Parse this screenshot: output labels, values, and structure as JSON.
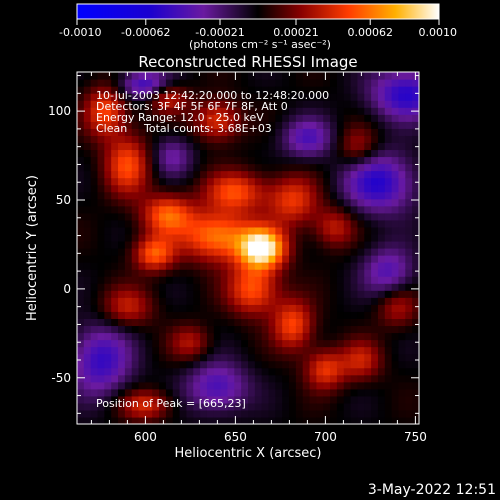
{
  "chart_data": {
    "type": "heatmap",
    "title": "Reconstructed RHESSI Image",
    "xlabel": "Heliocentric X (arcsec)",
    "ylabel": "Heliocentric Y (arcsec)",
    "xlim": [
      562,
      752
    ],
    "ylim": [
      -76,
      122
    ],
    "x_ticks": [
      600,
      650,
      700,
      750
    ],
    "y_ticks": [
      -50,
      0,
      50,
      100
    ],
    "colorbar": {
      "range": [
        -0.001,
        0.001
      ],
      "ticks": [
        "-0.0010",
        "-0.00062",
        "-0.00021",
        "0.00021",
        "0.00062",
        "0.0010"
      ],
      "tick_values": [
        -0.001,
        -0.00062,
        -0.00021,
        0.00021,
        0.00062,
        0.001
      ],
      "units": "(photons cm⁻² s⁻¹ asec⁻²)"
    },
    "annotations": [
      "10-Jul-2003 12:42:20.000 to 12:48:20.000",
      "Detectors: 3F 4F 5F 6F 7F 8F, Att 0",
      "Energy Range: 12.0 - 25.0 keV",
      "Clean",
      "Total counts: 3.68E+03"
    ],
    "peak_label": "Position of Peak = [665,23]",
    "peak": {
      "x": 665,
      "y": 23
    },
    "sources": [
      {
        "x": 665,
        "y": 23,
        "amp": 1.0,
        "sx": 9,
        "sy": 8
      },
      {
        "x": 640,
        "y": 30,
        "amp": 0.65,
        "sx": 14,
        "sy": 10
      },
      {
        "x": 612,
        "y": 42,
        "amp": 0.55,
        "sx": 10,
        "sy": 8
      },
      {
        "x": 590,
        "y": 70,
        "amp": 0.5,
        "sx": 9,
        "sy": 12
      },
      {
        "x": 578,
        "y": 100,
        "amp": 0.5,
        "sx": 8,
        "sy": 10
      },
      {
        "x": 605,
        "y": 20,
        "amp": 0.55,
        "sx": 8,
        "sy": 7
      },
      {
        "x": 650,
        "y": 55,
        "amp": 0.5,
        "sx": 12,
        "sy": 8
      },
      {
        "x": 682,
        "y": 50,
        "amp": 0.45,
        "sx": 10,
        "sy": 10
      },
      {
        "x": 705,
        "y": 35,
        "amp": 0.35,
        "sx": 8,
        "sy": 8
      },
      {
        "x": 640,
        "y": 95,
        "amp": 0.45,
        "sx": 9,
        "sy": 8
      },
      {
        "x": 612,
        "y": 108,
        "amp": 0.4,
        "sx": 8,
        "sy": 6
      },
      {
        "x": 660,
        "y": 0,
        "amp": 0.55,
        "sx": 10,
        "sy": 10
      },
      {
        "x": 682,
        "y": -20,
        "amp": 0.5,
        "sx": 8,
        "sy": 10
      },
      {
        "x": 700,
        "y": -45,
        "amp": 0.45,
        "sx": 8,
        "sy": 8
      },
      {
        "x": 590,
        "y": -10,
        "amp": 0.35,
        "sx": 10,
        "sy": 8
      },
      {
        "x": 720,
        "y": -40,
        "amp": 0.35,
        "sx": 8,
        "sy": 8
      },
      {
        "x": 740,
        "y": -10,
        "amp": 0.3,
        "sx": 8,
        "sy": 8
      },
      {
        "x": 625,
        "y": -30,
        "amp": 0.3,
        "sx": 8,
        "sy": 7
      },
      {
        "x": 600,
        "y": -65,
        "amp": 0.4,
        "sx": 10,
        "sy": 6
      },
      {
        "x": 718,
        "y": 80,
        "amp": 0.3,
        "sx": 8,
        "sy": 8
      },
      {
        "x": 745,
        "y": 110,
        "amp": -0.55,
        "sx": 14,
        "sy": 10
      },
      {
        "x": 600,
        "y": 115,
        "amp": -0.5,
        "sx": 10,
        "sy": 6
      },
      {
        "x": 730,
        "y": 60,
        "amp": -0.55,
        "sx": 14,
        "sy": 12
      },
      {
        "x": 575,
        "y": -40,
        "amp": -0.5,
        "sx": 12,
        "sy": 14
      },
      {
        "x": 640,
        "y": -55,
        "amp": -0.45,
        "sx": 12,
        "sy": 10
      },
      {
        "x": 690,
        "y": 85,
        "amp": -0.4,
        "sx": 10,
        "sy": 8
      },
      {
        "x": 735,
        "y": 10,
        "amp": -0.4,
        "sx": 10,
        "sy": 10
      },
      {
        "x": 615,
        "y": 75,
        "amp": -0.3,
        "sx": 8,
        "sy": 8
      }
    ]
  },
  "footer": {
    "timestamp": "3-May-2022 12:51"
  }
}
